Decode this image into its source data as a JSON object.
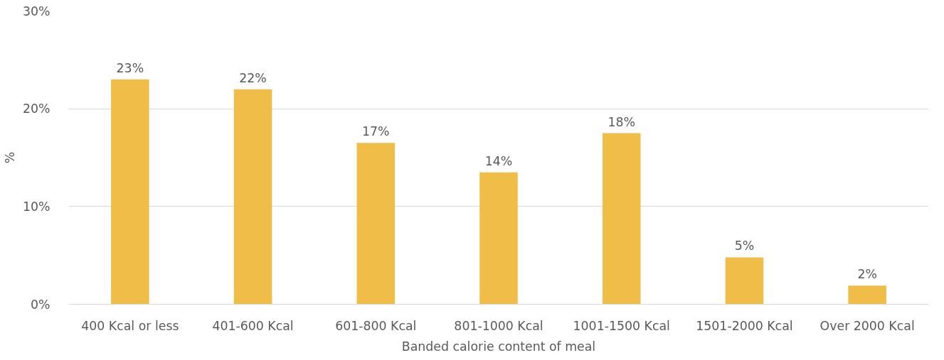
{
  "chart_data": {
    "type": "bar",
    "xlabel": "Banded calorie content of meal",
    "ylabel": "%",
    "categories": [
      "400 Kcal or less",
      "401-600 Kcal",
      "601-800 Kcal",
      "801-1000 Kcal",
      "1001-1500 Kcal",
      "1501-2000 Kcal",
      "Over 2000 Kcal"
    ],
    "values": [
      23,
      22,
      16.5,
      13.5,
      17.5,
      4.8,
      1.9
    ],
    "value_labels": [
      "23%",
      "22%",
      "17%",
      "14%",
      "18%",
      "5%",
      "2%"
    ],
    "color": "#f0be48",
    "ylim": [
      0,
      30
    ],
    "yticks": [
      {
        "value": 0,
        "label": "0%"
      },
      {
        "value": 10,
        "label": "10%"
      },
      {
        "value": 20,
        "label": "20%"
      },
      {
        "value": 30,
        "label": "30%"
      }
    ],
    "grid": "y"
  }
}
